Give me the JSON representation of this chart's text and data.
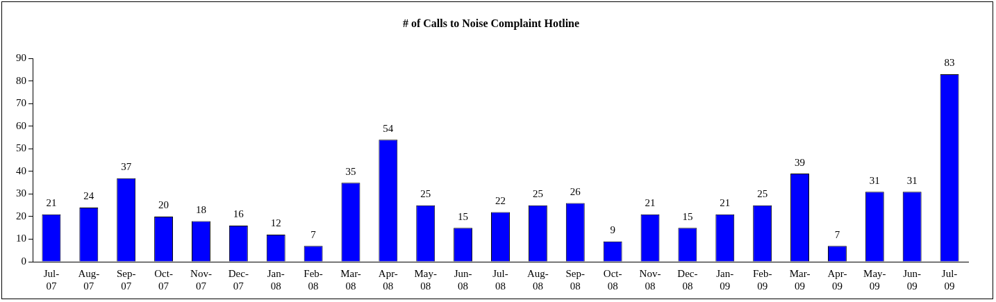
{
  "chart_data": {
    "type": "bar",
    "title": "# of Calls to Noise Complaint Hotline",
    "categories": [
      "Jul-07",
      "Aug-07",
      "Sep-07",
      "Oct-07",
      "Nov-07",
      "Dec-07",
      "Jan-08",
      "Feb-08",
      "Mar-08",
      "Apr-08",
      "May-08",
      "Jun-08",
      "Jul-08",
      "Aug-08",
      "Sep-08",
      "Oct-08",
      "Nov-08",
      "Dec-08",
      "Jan-09",
      "Feb-09",
      "Mar-09",
      "Apr-09",
      "May-09",
      "Jun-09",
      "Jul-09"
    ],
    "values": [
      21,
      24,
      37,
      20,
      18,
      16,
      12,
      7,
      35,
      54,
      25,
      15,
      22,
      25,
      26,
      9,
      21,
      15,
      21,
      25,
      39,
      7,
      31,
      31,
      83
    ],
    "color": "#0000ff",
    "ylim": [
      0,
      90
    ],
    "yticks": [
      0,
      10,
      20,
      30,
      40,
      50,
      60,
      70,
      80,
      90
    ],
    "grid": false,
    "legend": false,
    "data_labels": true
  }
}
